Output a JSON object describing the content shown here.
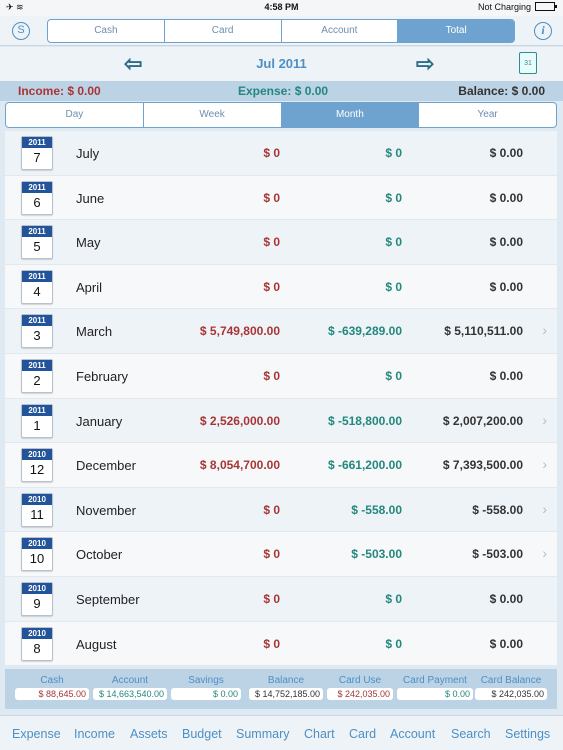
{
  "status_bar": {
    "left": "✈ ≋",
    "time": "4:58 PM",
    "right": "Not Charging"
  },
  "top_bar": {
    "left_icon": "S",
    "info_icon": "i",
    "account_tabs": [
      {
        "label": "Cash",
        "selected": false
      },
      {
        "label": "Card",
        "selected": false
      },
      {
        "label": "Account",
        "selected": false
      },
      {
        "label": "Total",
        "selected": true
      }
    ]
  },
  "nav": {
    "title": "Jul 2011",
    "prev_icon": "⇦",
    "next_icon": "⇨",
    "calendar_icon": "31"
  },
  "summary": {
    "income": "Income: $ 0.00",
    "expense": "Expense: $ 0.00",
    "balance": "Balance: $ 0.00"
  },
  "period_tabs": [
    {
      "label": "Day",
      "selected": false
    },
    {
      "label": "Week",
      "selected": false
    },
    {
      "label": "Month",
      "selected": true
    },
    {
      "label": "Year",
      "selected": false
    }
  ],
  "rows": [
    {
      "year": "2011",
      "day": "7",
      "month": "July",
      "income": "$ 0",
      "expense": "$ 0",
      "balance": "$ 0.00",
      "chevron": false
    },
    {
      "year": "2011",
      "day": "6",
      "month": "June",
      "income": "$ 0",
      "expense": "$ 0",
      "balance": "$ 0.00",
      "chevron": false
    },
    {
      "year": "2011",
      "day": "5",
      "month": "May",
      "income": "$ 0",
      "expense": "$ 0",
      "balance": "$ 0.00",
      "chevron": false
    },
    {
      "year": "2011",
      "day": "4",
      "month": "April",
      "income": "$ 0",
      "expense": "$ 0",
      "balance": "$ 0.00",
      "chevron": false
    },
    {
      "year": "2011",
      "day": "3",
      "month": "March",
      "income": "$ 5,749,800.00",
      "expense": "$ -639,289.00",
      "balance": "$ 5,110,511.00",
      "chevron": true
    },
    {
      "year": "2011",
      "day": "2",
      "month": "February",
      "income": "$ 0",
      "expense": "$ 0",
      "balance": "$ 0.00",
      "chevron": false
    },
    {
      "year": "2011",
      "day": "1",
      "month": "January",
      "income": "$ 2,526,000.00",
      "expense": "$ -518,800.00",
      "balance": "$ 2,007,200.00",
      "chevron": true
    },
    {
      "year": "2010",
      "day": "12",
      "month": "December",
      "income": "$ 8,054,700.00",
      "expense": "$ -661,200.00",
      "balance": "$ 7,393,500.00",
      "chevron": true
    },
    {
      "year": "2010",
      "day": "11",
      "month": "November",
      "income": "$ 0",
      "expense": "$ -558.00",
      "balance": "$ -558.00",
      "chevron": true
    },
    {
      "year": "2010",
      "day": "10",
      "month": "October",
      "income": "$ 0",
      "expense": "$ -503.00",
      "balance": "$ -503.00",
      "chevron": true
    },
    {
      "year": "2010",
      "day": "9",
      "month": "September",
      "income": "$ 0",
      "expense": "$ 0",
      "balance": "$ 0.00",
      "chevron": false
    },
    {
      "year": "2010",
      "day": "8",
      "month": "August",
      "income": "$ 0",
      "expense": "$ 0",
      "balance": "$ 0.00",
      "chevron": false
    }
  ],
  "totals": [
    {
      "label": "Cash",
      "value": "$ 88,645.00",
      "color": "#a83535"
    },
    {
      "label": "Account",
      "value": "$ 14,663,540.00",
      "color": "#23877d"
    },
    {
      "label": "Savings",
      "value": "$ 0.00",
      "color": "#23877d"
    },
    {
      "label": "Balance",
      "value": "$ 14,752,185.00",
      "color": "#333333"
    },
    {
      "label": "Card Use",
      "value": "$ 242,035.00",
      "color": "#a83535"
    },
    {
      "label": "Card Payment",
      "value": "$ 0.00",
      "color": "#23877d"
    },
    {
      "label": "Card Balance",
      "value": "$ 242,035.00",
      "color": "#333333"
    }
  ],
  "tab_bar": [
    "Expense",
    "Income",
    "Assets",
    "Budget",
    "Summary",
    "Chart",
    "Card",
    "Account",
    "Search",
    "Settings"
  ],
  "colors": {
    "accent": "#4d8fc4",
    "income": "#a83535",
    "expense": "#23877d",
    "header_band": "#bcd3e6"
  }
}
